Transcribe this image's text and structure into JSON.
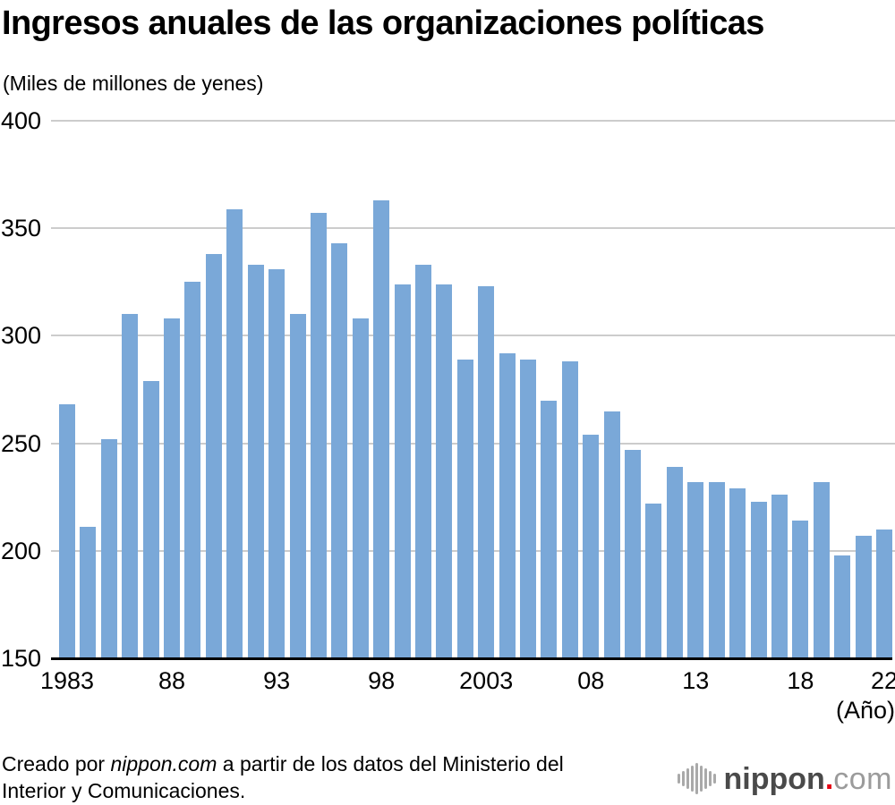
{
  "header": {
    "title": "Ingresos anuales de las organizaciones políticas",
    "subtitle": "(Miles de millones de yenes)"
  },
  "chart_data": {
    "type": "bar",
    "title": "Ingresos anuales de las organizaciones políticas",
    "ylabel": "(Miles de millones de yenes)",
    "xlabel": "(Año)",
    "ylim": [
      150,
      400
    ],
    "yticks": [
      400,
      350,
      300,
      250,
      200,
      150
    ],
    "grid": "horizontal",
    "legend_position": "none",
    "bar_color": "#7aa8d8",
    "grid_color": "#cccccc",
    "axis_color": "#000000",
    "categories": [
      1983,
      1984,
      1985,
      1986,
      1987,
      1988,
      1989,
      1990,
      1991,
      1992,
      1993,
      1994,
      1995,
      1996,
      1997,
      1998,
      1999,
      2000,
      2001,
      2002,
      2003,
      2004,
      2005,
      2006,
      2007,
      2008,
      2009,
      2010,
      2011,
      2012,
      2013,
      2014,
      2015,
      2016,
      2017,
      2018,
      2019,
      2020,
      2021,
      2022
    ],
    "values": [
      268,
      211,
      252,
      310,
      279,
      308,
      325,
      338,
      359,
      333,
      331,
      310,
      357,
      343,
      308,
      363,
      324,
      333,
      324,
      289,
      323,
      292,
      289,
      270,
      288,
      254,
      265,
      247,
      222,
      239,
      232,
      232,
      229,
      223,
      226,
      214,
      232,
      198,
      207,
      210
    ],
    "xticks": [
      {
        "index": 0,
        "label": "1983"
      },
      {
        "index": 5,
        "label": "88"
      },
      {
        "index": 10,
        "label": "93"
      },
      {
        "index": 15,
        "label": "98"
      },
      {
        "index": 20,
        "label": "2003"
      },
      {
        "index": 25,
        "label": "08"
      },
      {
        "index": 30,
        "label": "13"
      },
      {
        "index": 35,
        "label": "18"
      },
      {
        "index": 39,
        "label": "22"
      }
    ]
  },
  "footer": {
    "line1_prefix": "Creado por ",
    "line1_source": "nippon.com",
    "line1_suffix": " a partir de los datos del Ministerio del",
    "line2": "Interior y Comunicaciones."
  },
  "logo": {
    "brand": "nippon",
    "dot": ".",
    "tld": "com",
    "colors": {
      "brand": "#4a4a4a",
      "dot": "#e60012",
      "tld": "#9b9b9b",
      "icon": "#a9a9a9"
    },
    "wave_heights": [
      11,
      17,
      23,
      29,
      35,
      29,
      23,
      17,
      11
    ]
  }
}
